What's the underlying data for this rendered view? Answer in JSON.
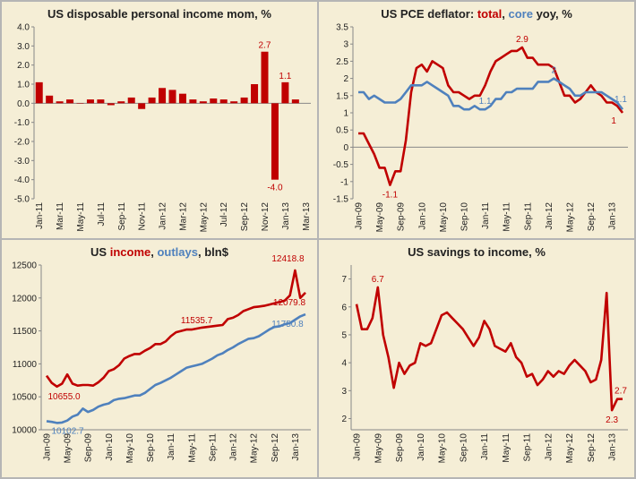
{
  "chart_data": [
    {
      "type": "bar",
      "title": "US disposable personal income mom, %",
      "ylim": [
        -5,
        4
      ],
      "yticks": [
        -5,
        -4,
        -3,
        -2,
        -1,
        0,
        1,
        2,
        3,
        4
      ],
      "ytick_labels": [
        "-5.0",
        "-4.0",
        "-3.0",
        "-2.0",
        "-1.0",
        "0.0",
        "1.0",
        "2.0",
        "3.0",
        "4.0"
      ],
      "categories": [
        "Jan-11",
        "Feb-11",
        "Mar-11",
        "Apr-11",
        "May-11",
        "Jun-11",
        "Jul-11",
        "Aug-11",
        "Sep-11",
        "Oct-11",
        "Nov-11",
        "Dec-11",
        "Jan-12",
        "Feb-12",
        "Mar-12",
        "Apr-12",
        "May-12",
        "Jun-12",
        "Jul-12",
        "Aug-12",
        "Sep-12",
        "Oct-12",
        "Nov-12",
        "Dec-12",
        "Jan-13",
        "Feb-13",
        "Mar-13"
      ],
      "xtick_labels": [
        "Jan-11",
        "Mar-11",
        "May-11",
        "Jul-11",
        "Sep-11",
        "Nov-11",
        "Jan-12",
        "Mar-12",
        "May-12",
        "Jul-12",
        "Sep-12",
        "Nov-12",
        "Jan-13",
        "Mar-13"
      ],
      "values": [
        1.1,
        0.4,
        0.1,
        0.2,
        0.0,
        0.2,
        0.2,
        -0.1,
        0.1,
        0.3,
        -0.3,
        0.3,
        0.8,
        0.7,
        0.5,
        0.2,
        0.1,
        0.25,
        0.2,
        0.1,
        0.3,
        1.0,
        2.7,
        -4.0,
        1.1,
        0.2,
        null
      ],
      "color": "#c00000",
      "annotations": [
        {
          "label": "2.7",
          "category": "Nov-12",
          "value": 2.7
        },
        {
          "label": "-4.0",
          "category": "Dec-12",
          "value": -4.0
        },
        {
          "label": "1.1",
          "category": "Jan-13",
          "value": 1.1
        }
      ]
    },
    {
      "type": "line",
      "title_parts": [
        {
          "text": "US PCE deflator: ",
          "color": "#222222"
        },
        {
          "text": "total",
          "color": "#c00000"
        },
        {
          "text": ", ",
          "color": "#222222"
        },
        {
          "text": "core",
          "color": "#4f81bd"
        },
        {
          "text": " yoy, %",
          "color": "#222222"
        }
      ],
      "ylim": [
        -1.5,
        3.5
      ],
      "yticks": [
        -1.5,
        -1,
        -0.5,
        0,
        0.5,
        1,
        1.5,
        2,
        2.5,
        3,
        3.5
      ],
      "ytick_labels": [
        "-1.5",
        "-1",
        "-0.5",
        "0",
        "0.5",
        "1",
        "1.5",
        "2",
        "2.5",
        "3",
        "3.5"
      ],
      "x_start": "Jan-09",
      "n_points": 51,
      "xtick_labels": [
        "Jan-09",
        "May-09",
        "Sep-09",
        "Jan-10",
        "May-10",
        "Sep-10",
        "Jan-11",
        "May-11",
        "Sep-11",
        "Jan-12",
        "May-12",
        "Sep-12",
        "Jan-13"
      ],
      "xtick_index": [
        0,
        4,
        8,
        12,
        16,
        20,
        24,
        28,
        32,
        36,
        40,
        44,
        48
      ],
      "series": [
        {
          "color": "#c00000",
          "values": [
            0.4,
            0.4,
            0.1,
            -0.2,
            -0.6,
            -0.6,
            -1.1,
            -0.7,
            -0.7,
            0.2,
            1.6,
            2.3,
            2.4,
            2.2,
            2.5,
            2.4,
            2.3,
            1.8,
            1.6,
            1.6,
            1.5,
            1.4,
            1.5,
            1.5,
            1.8,
            2.2,
            2.5,
            2.6,
            2.7,
            2.8,
            2.8,
            2.9,
            2.6,
            2.6,
            2.4,
            2.4,
            2.4,
            2.3,
            1.9,
            1.5,
            1.5,
            1.3,
            1.4,
            1.6,
            1.8,
            1.6,
            1.5,
            1.3,
            1.3,
            1.2,
            1.0
          ]
        },
        {
          "color": "#4f81bd",
          "values": [
            1.6,
            1.6,
            1.4,
            1.5,
            1.4,
            1.3,
            1.3,
            1.3,
            1.4,
            1.6,
            1.8,
            1.8,
            1.8,
            1.9,
            1.8,
            1.7,
            1.6,
            1.5,
            1.2,
            1.2,
            1.1,
            1.1,
            1.2,
            1.1,
            1.1,
            1.2,
            1.4,
            1.4,
            1.6,
            1.6,
            1.7,
            1.7,
            1.7,
            1.7,
            1.9,
            1.9,
            1.9,
            2.0,
            1.9,
            1.8,
            1.7,
            1.5,
            1.5,
            1.6,
            1.6,
            1.6,
            1.6,
            1.5,
            1.4,
            1.3,
            1.1
          ]
        }
      ],
      "annotations": [
        {
          "label": "-1.1",
          "index": 6,
          "value": -1.1,
          "color": "#c00000"
        },
        {
          "label": "2.9",
          "index": 31,
          "value": 2.9,
          "color": "#c00000"
        },
        {
          "label": "1.1",
          "index": 24,
          "value": 1.1,
          "color": "#4f81bd"
        },
        {
          "label": "2",
          "index": 37,
          "value": 2.0,
          "color": "#4f81bd"
        },
        {
          "label": "1.1",
          "index": 50,
          "value": 1.1,
          "color": "#4f81bd"
        },
        {
          "label": "1",
          "index": 49,
          "value": 1.0,
          "color": "#c00000"
        }
      ]
    },
    {
      "type": "line",
      "title_parts": [
        {
          "text": "US ",
          "color": "#222222"
        },
        {
          "text": "income",
          "color": "#c00000"
        },
        {
          "text": ", ",
          "color": "#222222"
        },
        {
          "text": "outlays",
          "color": "#4f81bd"
        },
        {
          "text": ", bln$",
          "color": "#222222"
        }
      ],
      "ylim": [
        10000,
        12500
      ],
      "yticks": [
        10000,
        10500,
        11000,
        11500,
        12000,
        12500
      ],
      "ytick_labels": [
        "10000",
        "10500",
        "11000",
        "11500",
        "12000",
        "12500"
      ],
      "x_start": "Jan-09",
      "n_points": 51,
      "xtick_labels": [
        "Jan-09",
        "May-09",
        "Sep-09",
        "Jan-10",
        "May-10",
        "Sep-10",
        "Jan-11",
        "May-11",
        "Sep-11",
        "Jan-12",
        "May-12",
        "Sep-12",
        "Jan-13"
      ],
      "xtick_index": [
        0,
        4,
        8,
        12,
        16,
        20,
        24,
        28,
        32,
        36,
        40,
        44,
        48
      ],
      "series": [
        {
          "color": "#c00000",
          "values": [
            10820,
            10710,
            10655,
            10700,
            10840,
            10700,
            10670,
            10680,
            10680,
            10670,
            10720,
            10790,
            10890,
            10920,
            10980,
            11080,
            11120,
            11150,
            11150,
            11200,
            11240,
            11300,
            11300,
            11340,
            11420,
            11480,
            11500,
            11520,
            11520,
            11535.7,
            11550,
            11560,
            11570,
            11580,
            11590,
            11680,
            11700,
            11740,
            11800,
            11830,
            11860,
            11870,
            11880,
            11900,
            11920,
            11940,
            11960,
            12040,
            12418.8,
            12000,
            12079.8
          ]
        },
        {
          "color": "#4f81bd",
          "values": [
            10130,
            10120,
            10102.7,
            10110,
            10140,
            10200,
            10230,
            10320,
            10270,
            10300,
            10350,
            10380,
            10400,
            10450,
            10470,
            10480,
            10500,
            10520,
            10520,
            10560,
            10620,
            10680,
            10710,
            10750,
            10790,
            10840,
            10890,
            10940,
            10960,
            10980,
            11000,
            11040,
            11080,
            11130,
            11160,
            11210,
            11250,
            11300,
            11340,
            11380,
            11390,
            11420,
            11470,
            11520,
            11560,
            11570,
            11600,
            11620,
            11670,
            11720,
            11750.8
          ]
        }
      ],
      "annotations": [
        {
          "label": "10655.0",
          "index": 2,
          "value": 10655,
          "color": "#c00000"
        },
        {
          "label": "10102.7",
          "index": 2,
          "value": 10102.7,
          "color": "#4f81bd"
        },
        {
          "label": "11535.7",
          "index": 29,
          "value": 11535.7,
          "color": "#c00000"
        },
        {
          "label": "12418.8",
          "index": 48,
          "value": 12418.8,
          "color": "#c00000"
        },
        {
          "label": "12079.8",
          "index": 50,
          "value": 12079.8,
          "color": "#c00000"
        },
        {
          "label": "11750.8",
          "index": 50,
          "value": 11750.8,
          "color": "#4f81bd"
        }
      ]
    },
    {
      "type": "line",
      "title": "US savings to income, %",
      "ylim": [
        1.6,
        7.5
      ],
      "yticks": [
        2,
        3,
        4,
        5,
        6,
        7
      ],
      "ytick_labels": [
        "2",
        "3",
        "4",
        "5",
        "6",
        "7"
      ],
      "x_start": "Jan-09",
      "n_points": 51,
      "xtick_labels": [
        "Jan-09",
        "May-09",
        "Sep-09",
        "Jan-10",
        "May-10",
        "Sep-10",
        "Jan-11",
        "May-11",
        "Sep-11",
        "Jan-12",
        "May-12",
        "Sep-12",
        "Jan-13"
      ],
      "xtick_index": [
        0,
        4,
        8,
        12,
        16,
        20,
        24,
        28,
        32,
        36,
        40,
        44,
        48
      ],
      "series": [
        {
          "color": "#c00000",
          "values": [
            6.1,
            5.2,
            5.2,
            5.6,
            6.7,
            5.0,
            4.2,
            3.1,
            4.0,
            3.6,
            3.9,
            4.0,
            4.7,
            4.6,
            4.7,
            5.2,
            5.7,
            5.8,
            5.6,
            5.4,
            5.2,
            4.9,
            4.6,
            4.9,
            5.5,
            5.2,
            4.6,
            4.5,
            4.4,
            4.7,
            4.2,
            4.0,
            3.5,
            3.6,
            3.2,
            3.4,
            3.7,
            3.5,
            3.7,
            3.6,
            3.9,
            4.1,
            3.9,
            3.7,
            3.3,
            3.4,
            4.1,
            6.5,
            2.3,
            2.7,
            2.7
          ]
        }
      ],
      "annotations": [
        {
          "label": "6.7",
          "index": 4,
          "value": 6.7,
          "color": "#c00000"
        },
        {
          "label": "2.3",
          "index": 48,
          "value": 2.3,
          "color": "#c00000"
        },
        {
          "label": "2.7",
          "index": 50,
          "value": 2.7,
          "color": "#c00000"
        }
      ]
    }
  ]
}
